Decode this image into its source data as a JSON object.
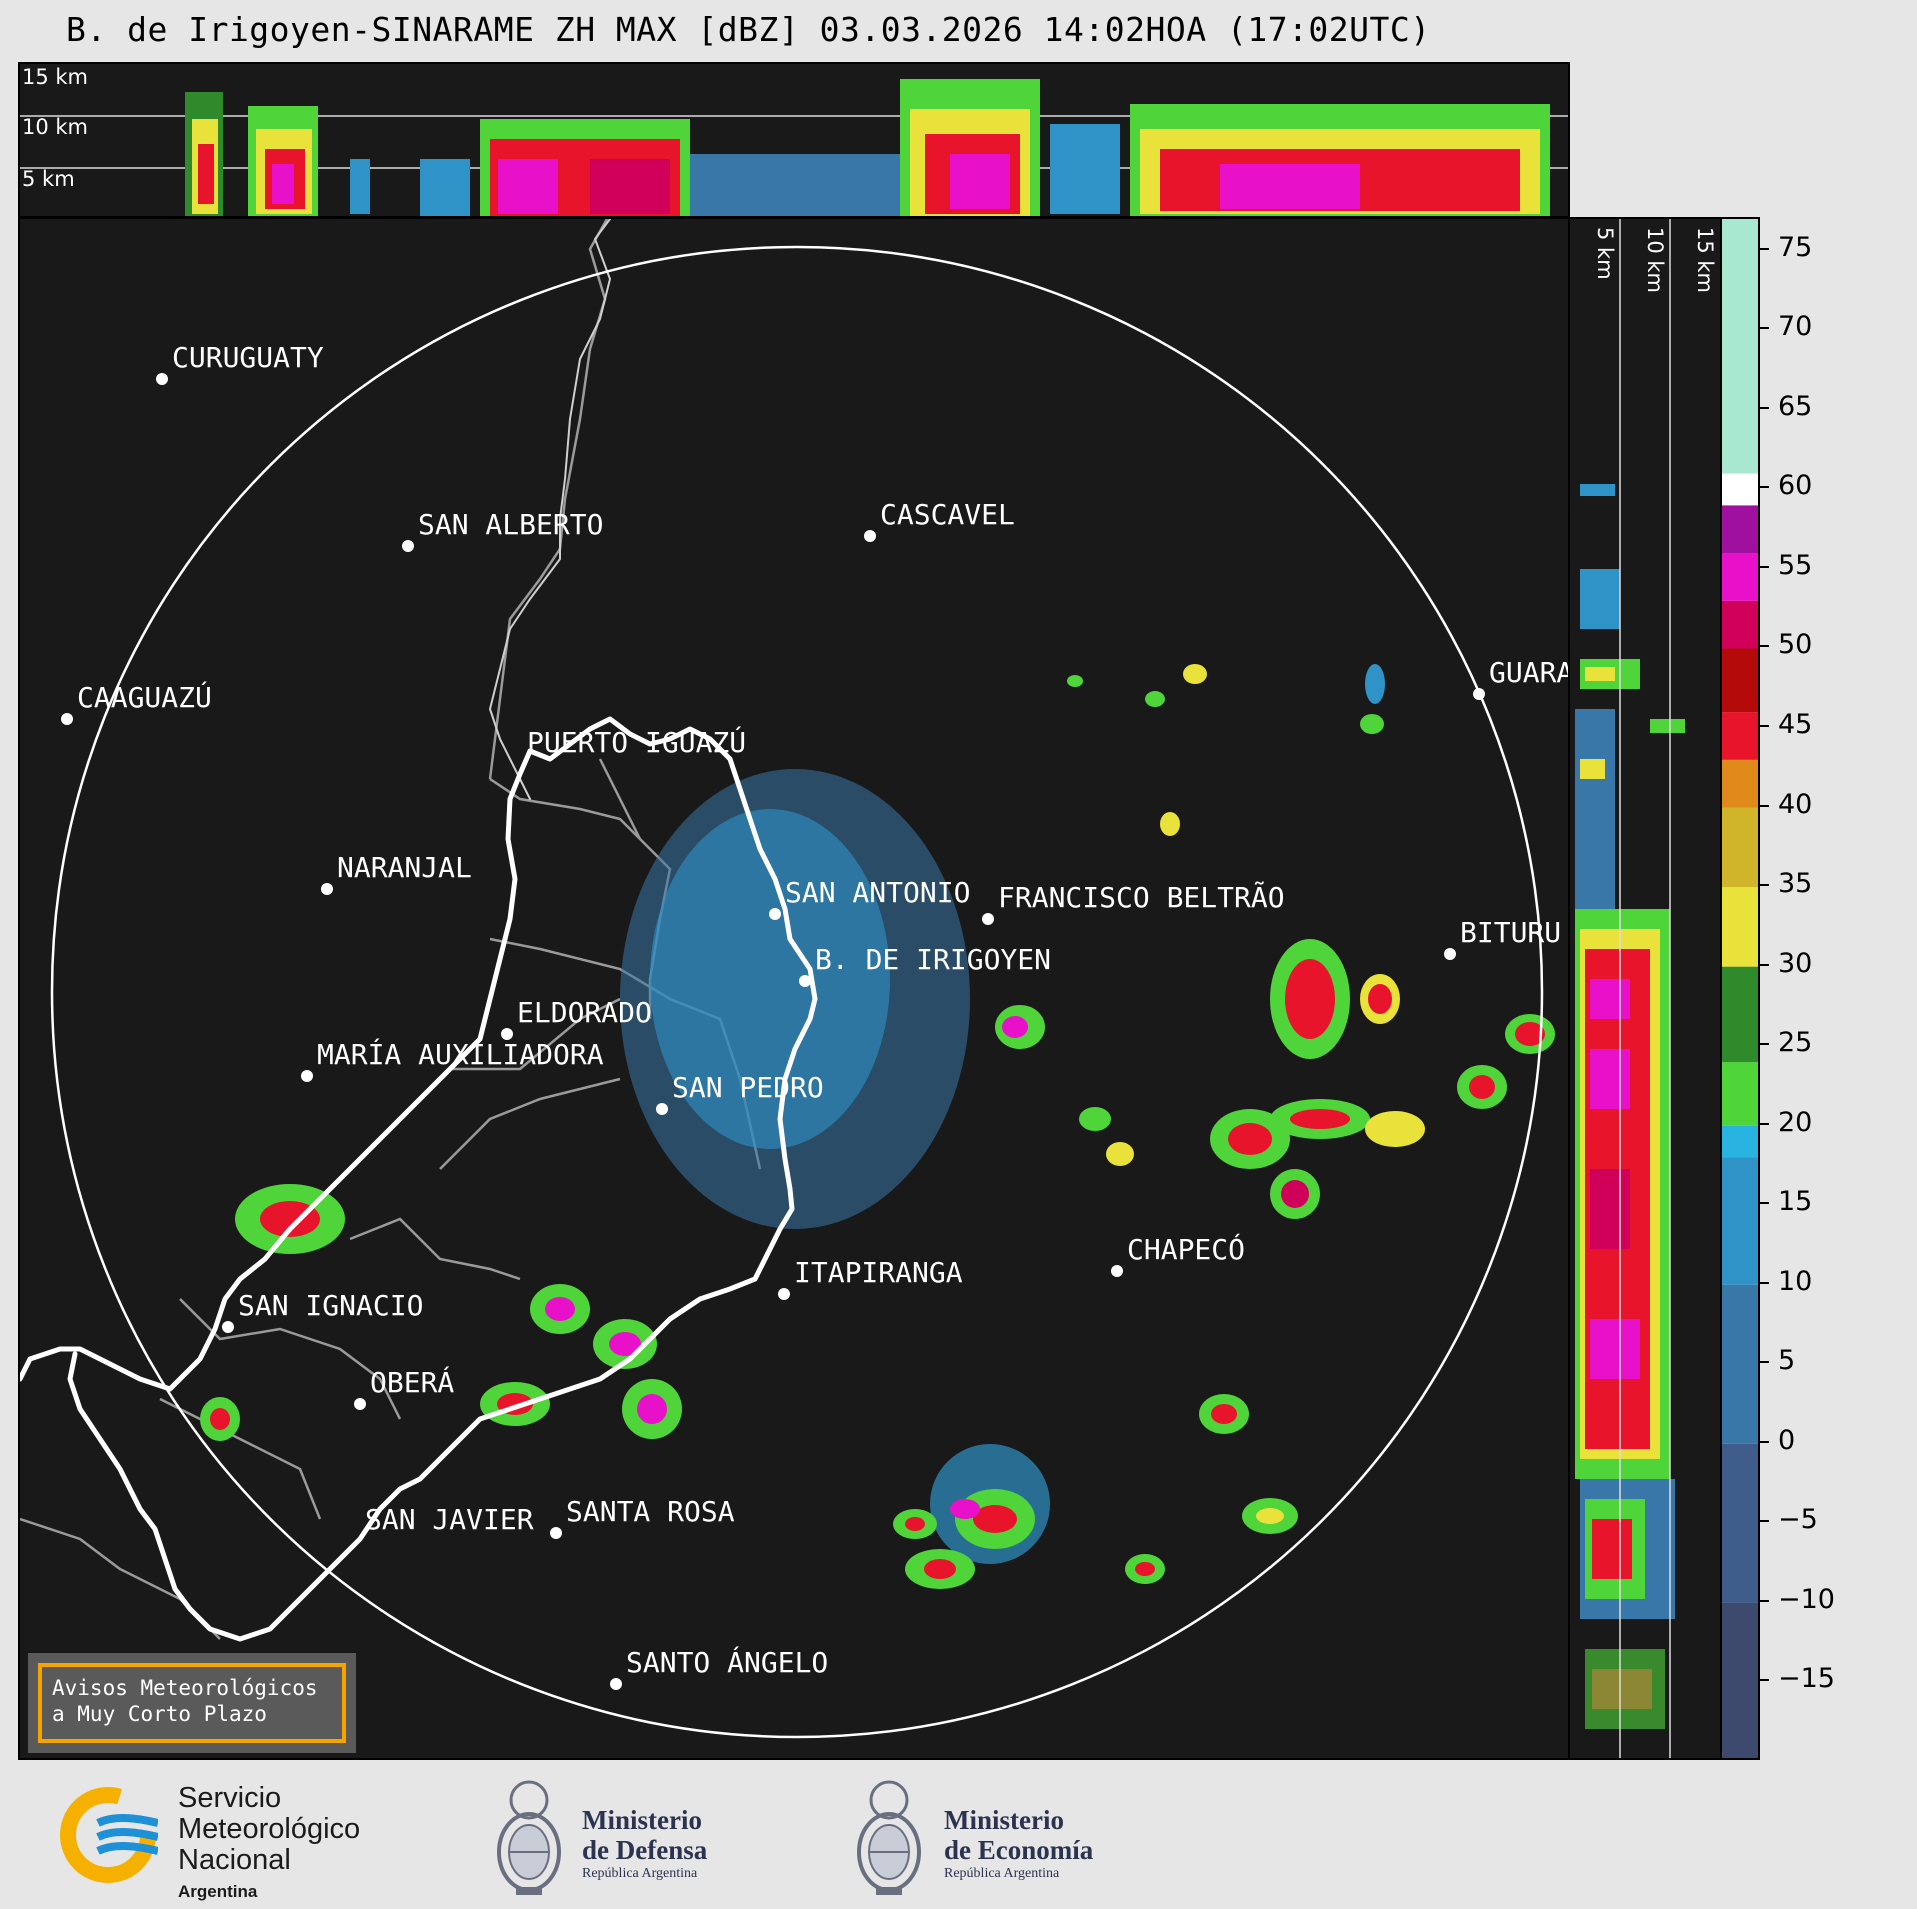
{
  "title": "B. de Irigoyen-SINARAME ZH MAX [dBZ] 03.03.2026 14:02HOA (17:02UTC)",
  "top_panel": {
    "height_labels": [
      "15 km",
      "10 km",
      "5 km"
    ]
  },
  "side_panel": {
    "height_labels": [
      "5 km",
      "10 km",
      "15 km"
    ]
  },
  "cities": [
    {
      "name": "CURUGUATY"
    },
    {
      "name": "SAN ALBERTO"
    },
    {
      "name": "CASCAVEL"
    },
    {
      "name": "CAAGUAZÚ"
    },
    {
      "name": "GUARA"
    },
    {
      "name": "PUERTO IGUAZÚ"
    },
    {
      "name": "NARANJAL"
    },
    {
      "name": "SAN ANTONIO"
    },
    {
      "name": "FRANCISCO BELTRÃO"
    },
    {
      "name": "BITURU"
    },
    {
      "name": "B. DE IRIGOYEN"
    },
    {
      "name": "ELDORADO"
    },
    {
      "name": "MARÍA AUXILIADORA"
    },
    {
      "name": "SAN PEDRO"
    },
    {
      "name": "CHAPECÓ"
    },
    {
      "name": "ITAPIRANGA"
    },
    {
      "name": "SAN IGNACIO"
    },
    {
      "name": "OBERÁ"
    },
    {
      "name": "SAN JAVIER"
    },
    {
      "name": "SANTA ROSA"
    },
    {
      "name": "SANTO ÁNGELO"
    }
  ],
  "colorbar": {
    "unit": "dBZ",
    "min": -20,
    "max": 77,
    "ticks": [
      "75",
      "70",
      "65",
      "60",
      "55",
      "50",
      "45",
      "40",
      "35",
      "30",
      "25",
      "20",
      "15",
      "10",
      "5",
      "0",
      "−5",
      "−10",
      "−15"
    ],
    "tick_values": [
      75,
      70,
      65,
      60,
      55,
      50,
      45,
      40,
      35,
      30,
      25,
      20,
      15,
      10,
      5,
      0,
      -5,
      -10,
      -15
    ],
    "bands": [
      {
        "from": -20,
        "to": -10,
        "color": "#3d4a6e"
      },
      {
        "from": -10,
        "to": 0,
        "color": "#3f5c8a"
      },
      {
        "from": 0,
        "to": 10,
        "color": "#3877a8"
      },
      {
        "from": 10,
        "to": 18,
        "color": "#2f93c8"
      },
      {
        "from": 18,
        "to": 20,
        "color": "#28b3e0"
      },
      {
        "from": 20,
        "to": 24,
        "color": "#4fd43a"
      },
      {
        "from": 24,
        "to": 30,
        "color": "#2e8a2a"
      },
      {
        "from": 30,
        "to": 35,
        "color": "#e8e23a"
      },
      {
        "from": 35,
        "to": 40,
        "color": "#d0b42a"
      },
      {
        "from": 40,
        "to": 43,
        "color": "#e08a1c"
      },
      {
        "from": 43,
        "to": 46,
        "color": "#e8142c"
      },
      {
        "from": 46,
        "to": 50,
        "color": "#b40a0a"
      },
      {
        "from": 50,
        "to": 53,
        "color": "#d0005a"
      },
      {
        "from": 53,
        "to": 56,
        "color": "#e810c8"
      },
      {
        "from": 56,
        "to": 59,
        "color": "#a0109e"
      },
      {
        "from": 59,
        "to": 61,
        "color": "#ffffff"
      },
      {
        "from": 61,
        "to": 77,
        "color": "#a8e8d0"
      }
    ]
  },
  "warning_box": {
    "line1": "Avisos Meteorológicos",
    "line2": "a Muy Corto Plazo"
  },
  "footer": {
    "smn": {
      "line1": "Servicio",
      "line2": "Meteorológico",
      "line3": "Nacional",
      "line4": "Argentina"
    },
    "defensa": {
      "line1": "Ministerio",
      "line2": "de Defensa",
      "line3": "República Argentina"
    },
    "economia": {
      "line1": "Ministerio",
      "line2": "de Economía",
      "line3": "República Argentina"
    }
  },
  "colors": {
    "accent_orange": "#f5a400",
    "panel_bg": "#191919",
    "smn_blue": "#1e90d8",
    "smn_yellow": "#f6b100"
  }
}
